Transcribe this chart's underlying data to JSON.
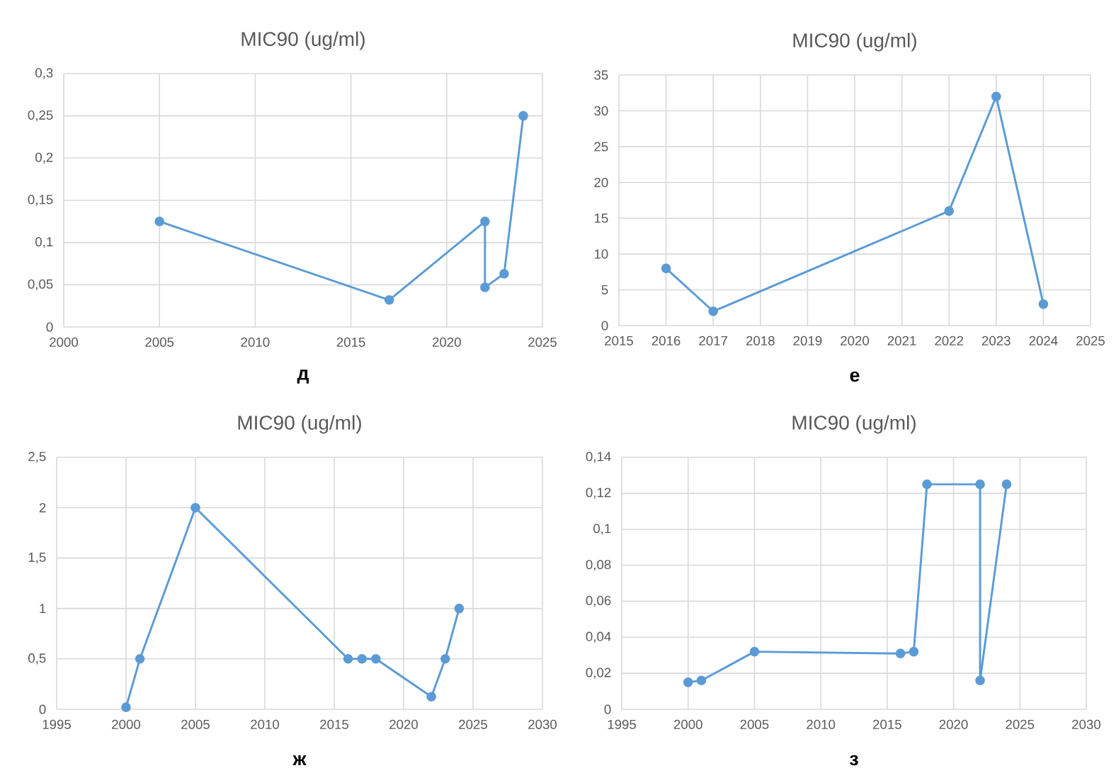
{
  "chart_data": [
    {
      "type": "line",
      "title": "MIC90 (ug/ml)",
      "xlabel": "д",
      "x": [
        2005,
        2017,
        2022,
        2022,
        2023,
        2024
      ],
      "values": [
        0.125,
        0.032,
        0.125,
        0.047,
        0.063,
        0.25
      ],
      "color": "#5b9bd5",
      "marker": "circle",
      "grid": true,
      "xlim": [
        2000,
        2025
      ],
      "xticks": [
        2000,
        2005,
        2010,
        2015,
        2020,
        2025
      ],
      "ylim": [
        0,
        0.3
      ],
      "yticks": [
        0,
        {
          "value": 0.05,
          "label": "0,05"
        },
        {
          "value": 0.1,
          "label": "0,1"
        },
        {
          "value": 0.15,
          "label": "0,15"
        },
        {
          "value": 0.2,
          "label": "0,2"
        },
        {
          "value": 0.25,
          "label": "0,25"
        },
        {
          "value": 0.3,
          "label": "0,3"
        }
      ]
    },
    {
      "type": "line",
      "title": "MIC90 (ug/ml)",
      "xlabel": "е",
      "x": [
        2016,
        2017,
        2022,
        2023,
        2024
      ],
      "values": [
        8,
        2,
        16,
        32,
        3
      ],
      "color": "#5b9bd5",
      "marker": "circle",
      "grid": true,
      "xlim": [
        2015,
        2025
      ],
      "xticks": [
        2015,
        2016,
        2017,
        2018,
        2019,
        2020,
        2021,
        2022,
        2023,
        2024,
        2025
      ],
      "ylim": [
        0,
        35
      ],
      "yticks": [
        0,
        5,
        10,
        15,
        20,
        25,
        30,
        35
      ]
    },
    {
      "type": "line",
      "title": "MIC90 (ug/ml)",
      "xlabel": "ж",
      "x": [
        2000,
        2001,
        2005,
        2016,
        2017,
        2018,
        2022,
        2023,
        2024
      ],
      "values": [
        0.02,
        0.5,
        2,
        0.5,
        0.5,
        0.5,
        0.125,
        0.5,
        1
      ],
      "color": "#5b9bd5",
      "marker": "circle",
      "grid": true,
      "xlim": [
        1995,
        2030
      ],
      "xticks": [
        1995,
        2000,
        2005,
        2010,
        2015,
        2020,
        2025,
        2030
      ],
      "ylim": [
        0,
        2.5
      ],
      "yticks": [
        0,
        {
          "value": 0.5,
          "label": "0,5"
        },
        1,
        {
          "value": 1.5,
          "label": "1,5"
        },
        2,
        {
          "value": 2.5,
          "label": "2,5"
        }
      ]
    },
    {
      "type": "line",
      "title": "MIC90 (ug/ml)",
      "xlabel": "з",
      "x": [
        2000,
        2001,
        2005,
        2016,
        2017,
        2018,
        2022,
        2022,
        2024
      ],
      "values": [
        0.015,
        0.016,
        0.032,
        0.031,
        0.032,
        0.125,
        0.125,
        0.016,
        0.125
      ],
      "color": "#5b9bd5",
      "marker": "circle",
      "grid": true,
      "xlim": [
        1995,
        2030
      ],
      "xticks": [
        1995,
        2000,
        2005,
        2010,
        2015,
        2020,
        2025,
        2030
      ],
      "ylim": [
        0,
        0.14
      ],
      "yticks": [
        0,
        {
          "value": 0.02,
          "label": "0,02"
        },
        {
          "value": 0.04,
          "label": "0,04"
        },
        {
          "value": 0.06,
          "label": "0,06"
        },
        {
          "value": 0.08,
          "label": "0,08"
        },
        {
          "value": 0.1,
          "label": "0,1"
        },
        {
          "value": 0.12,
          "label": "0,12"
        },
        {
          "value": 0.14,
          "label": "0,14"
        }
      ]
    }
  ]
}
